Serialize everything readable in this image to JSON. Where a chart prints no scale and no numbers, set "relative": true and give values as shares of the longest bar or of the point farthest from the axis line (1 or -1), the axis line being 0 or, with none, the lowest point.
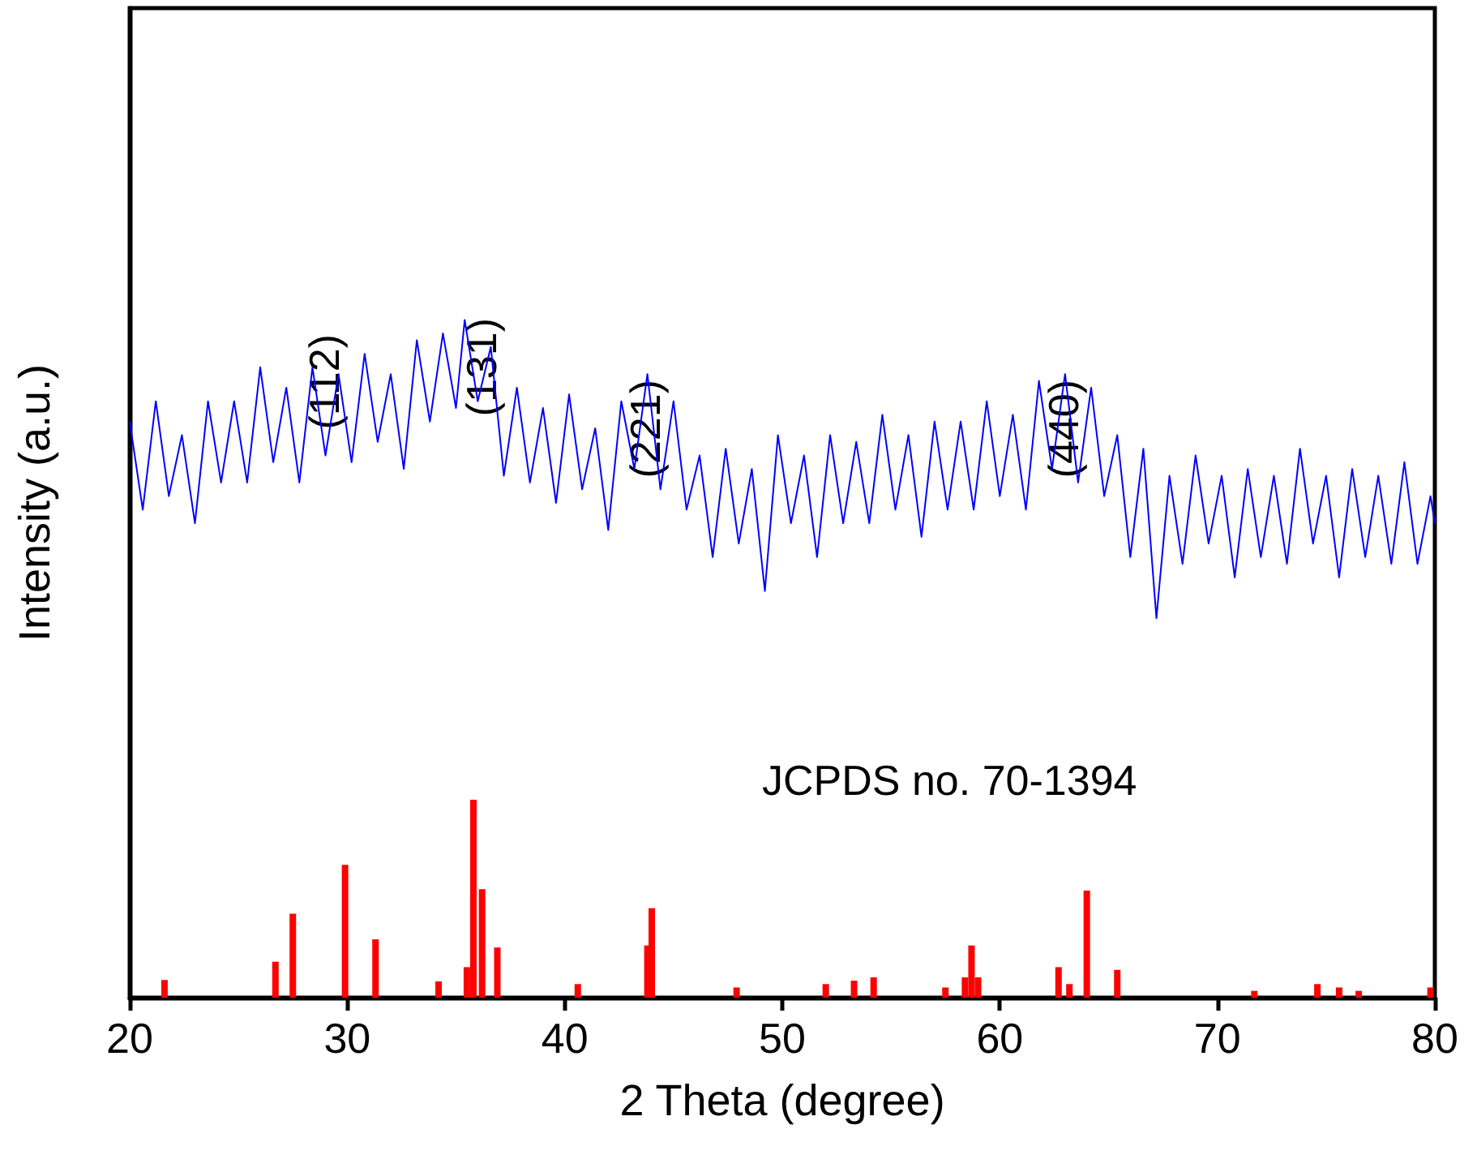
{
  "chart_data": {
    "type": "line",
    "relative": true,
    "xlabel": "2 Theta (degree)",
    "ylabel": "Intensity (a.u.)",
    "xlim": [
      20,
      80
    ],
    "xticks": [
      20,
      30,
      40,
      50,
      60,
      70,
      80
    ],
    "grid": false,
    "marker": "none",
    "line_style": "solid",
    "series": [
      {
        "color": "#0000ff",
        "x": [
          20,
          20.6,
          21.2,
          21.8,
          22.4,
          23,
          23.6,
          24.2,
          24.8,
          25.4,
          26,
          26.6,
          27.2,
          27.8,
          28.4,
          29,
          29.6,
          30.2,
          30.8,
          31.4,
          32,
          32.6,
          33.2,
          33.8,
          34.4,
          35,
          35.4,
          36,
          36.6,
          37.2,
          37.8,
          38.4,
          39,
          39.6,
          40.2,
          40.8,
          41.4,
          42,
          42.6,
          43.2,
          43.8,
          44.4,
          45,
          45.6,
          46.2,
          46.8,
          47.4,
          48,
          48.6,
          49.2,
          49.8,
          50.4,
          51,
          51.6,
          52.2,
          52.8,
          53.4,
          54,
          54.6,
          55.2,
          55.8,
          56.4,
          57,
          57.6,
          58.2,
          58.8,
          59.4,
          60,
          60.6,
          61.2,
          61.8,
          62.4,
          63,
          63.6,
          64.2,
          64.8,
          65.4,
          66,
          66.6,
          67.2,
          67.8,
          68.4,
          69,
          69.6,
          70.2,
          70.8,
          71.4,
          72,
          72.6,
          73.2,
          73.8,
          74.4,
          75,
          75.6,
          76.2,
          76.8,
          77.4,
          78,
          78.6,
          79.2,
          79.8,
          80
        ],
        "values": [
          0.85,
          0.72,
          0.88,
          0.74,
          0.83,
          0.7,
          0.88,
          0.76,
          0.88,
          0.76,
          0.93,
          0.79,
          0.9,
          0.76,
          0.93,
          0.8,
          0.92,
          0.79,
          0.95,
          0.82,
          0.92,
          0.78,
          0.97,
          0.85,
          0.98,
          0.87,
          1.0,
          0.88,
          0.96,
          0.77,
          0.9,
          0.76,
          0.87,
          0.73,
          0.89,
          0.75,
          0.84,
          0.69,
          0.88,
          0.78,
          0.92,
          0.75,
          0.88,
          0.72,
          0.8,
          0.65,
          0.81,
          0.67,
          0.78,
          0.6,
          0.83,
          0.7,
          0.8,
          0.65,
          0.83,
          0.7,
          0.82,
          0.7,
          0.86,
          0.72,
          0.83,
          0.68,
          0.85,
          0.72,
          0.85,
          0.72,
          0.88,
          0.74,
          0.86,
          0.72,
          0.91,
          0.78,
          0.92,
          0.76,
          0.9,
          0.74,
          0.83,
          0.65,
          0.81,
          0.56,
          0.77,
          0.64,
          0.8,
          0.67,
          0.77,
          0.62,
          0.78,
          0.65,
          0.77,
          0.64,
          0.81,
          0.67,
          0.77,
          0.62,
          0.78,
          0.65,
          0.77,
          0.64,
          0.79,
          0.64,
          0.74,
          0.7
        ]
      },
      {
        "type": "bar",
        "color": "#ff0000",
        "x": [
          21.6,
          26.7,
          27.5,
          29.9,
          31.3,
          34.2,
          35.5,
          35.8,
          36.2,
          36.9,
          40.6,
          43.8,
          44.0,
          47.9,
          52.0,
          53.3,
          54.2,
          57.5,
          58.4,
          58.7,
          59.0,
          62.7,
          63.2,
          64.0,
          65.4,
          71.7,
          74.6,
          75.6,
          76.5,
          79.8
        ],
        "values": [
          0.026,
          0.053,
          0.124,
          0.196,
          0.086,
          0.024,
          0.045,
          0.292,
          0.16,
          0.074,
          0.02,
          0.077,
          0.132,
          0.015,
          0.02,
          0.025,
          0.03,
          0.015,
          0.03,
          0.077,
          0.03,
          0.045,
          0.02,
          0.158,
          0.041,
          0.01,
          0.02,
          0.015,
          0.01,
          0.015
        ]
      }
    ],
    "annotations": [
      "(112)",
      "(131)",
      "(221)",
      "(440)",
      "JCPDS no. 70-1394"
    ]
  }
}
